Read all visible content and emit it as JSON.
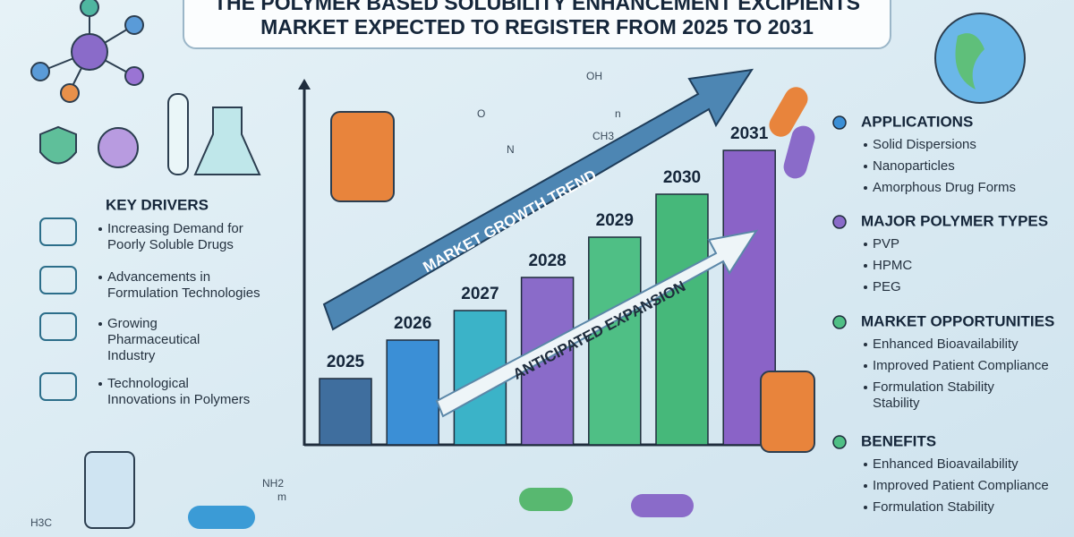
{
  "header": {
    "title_lines": [
      "THE POLYMER BASED SOLUBILITY ENHANCEMENT EXCIPIENTS",
      "MARKET EXPECTED TO REGISTER FROM 2025 TO 2031"
    ]
  },
  "key_drivers": {
    "heading": "KEY DRIVERS",
    "items": [
      [
        "Increasing Demand for",
        "Poorly Soluble Drugs"
      ],
      [
        "Advancements in",
        "Formulation Technologies"
      ],
      [
        "Growing",
        "Pharmaceutical",
        "Industry"
      ],
      [
        "Technological",
        "Innovations in Polymers"
      ]
    ]
  },
  "growth": {
    "years": [
      "2025",
      "2026",
      "2027",
      "2028",
      "2029",
      "2030",
      "2031"
    ],
    "trend_label": "MARKET GROWTH TREND",
    "expansion_label": "ANTICIPATED EXPANSION"
  },
  "sections": [
    {
      "heading": "APPLICATIONS",
      "items": [
        [
          "Solid Dispersions"
        ],
        [
          "Nanoparticles"
        ],
        [
          "Amorphous Drug Forms"
        ]
      ]
    },
    {
      "heading": "MAJOR POLYMER TYPES",
      "items": [
        [
          "PVP"
        ],
        [
          "HPMC"
        ],
        [
          "PEG"
        ]
      ]
    },
    {
      "heading": "MARKET OPPORTUNITIES",
      "items": [
        [
          "Enhanced Bioavailability"
        ],
        [
          "Improved Patient Compliance"
        ],
        [
          "Formulation Stability",
          "Stability"
        ]
      ]
    },
    {
      "heading": "BENEFITS",
      "items": [
        [
          "Enhanced Bioavailability"
        ],
        [
          "Improved Patient Compliance"
        ],
        [
          "Formulation Stability"
        ]
      ]
    }
  ],
  "chemistry_labels": [
    "OH",
    "CH3",
    "N",
    "NH2",
    "m",
    "n",
    "H3C",
    "O"
  ]
}
